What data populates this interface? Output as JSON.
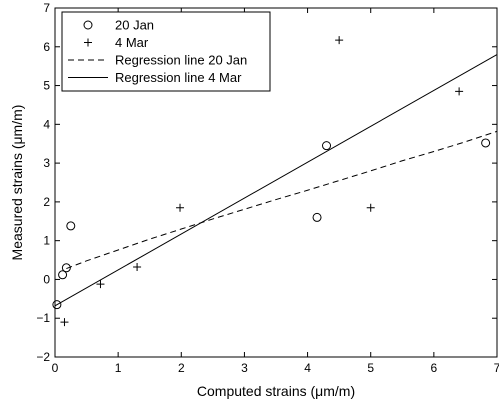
{
  "chart_data": {
    "type": "scatter",
    "title": "",
    "xlabel": "Computed strains (μm/m)",
    "ylabel": "Measured strains (μm/m)",
    "xlim": [
      0,
      7
    ],
    "ylim": [
      -2,
      7
    ],
    "xticks": [
      0,
      1,
      2,
      3,
      4,
      5,
      6,
      7
    ],
    "yticks": [
      -2,
      -1,
      0,
      1,
      2,
      3,
      4,
      5,
      6,
      7
    ],
    "grid": false,
    "legend_position": "top-left",
    "series": [
      {
        "name": "20 Jan",
        "kind": "points",
        "marker": "circle",
        "x": [
          0.03,
          0.12,
          0.18,
          0.25,
          4.15,
          4.3,
          6.82
        ],
        "y": [
          -0.65,
          0.12,
          0.3,
          1.38,
          1.6,
          3.45,
          3.52
        ]
      },
      {
        "name": "4 Mar",
        "kind": "points",
        "marker": "plus",
        "x": [
          0.15,
          0.72,
          1.3,
          1.98,
          4.5,
          5.0,
          6.4
        ],
        "y": [
          -1.1,
          -0.12,
          0.32,
          1.85,
          6.17,
          1.85,
          4.85
        ]
      },
      {
        "name": "Regression line 20 Jan",
        "kind": "line",
        "style": "dashed",
        "x": [
          0.18,
          0.5,
          1.0,
          1.5,
          2.0,
          2.5,
          3.0,
          3.5,
          4.0,
          4.5,
          5.0,
          5.5,
          6.0,
          6.5,
          7.0
        ],
        "y": [
          0.28,
          0.48,
          0.76,
          1.04,
          1.3,
          1.56,
          1.81,
          2.06,
          2.3,
          2.55,
          2.8,
          3.06,
          3.3,
          3.55,
          3.82
        ]
      },
      {
        "name": "Regression line 4 Mar",
        "kind": "line",
        "style": "solid",
        "x": [
          0.0,
          7.0
        ],
        "y": [
          -0.68,
          5.8
        ]
      }
    ]
  }
}
